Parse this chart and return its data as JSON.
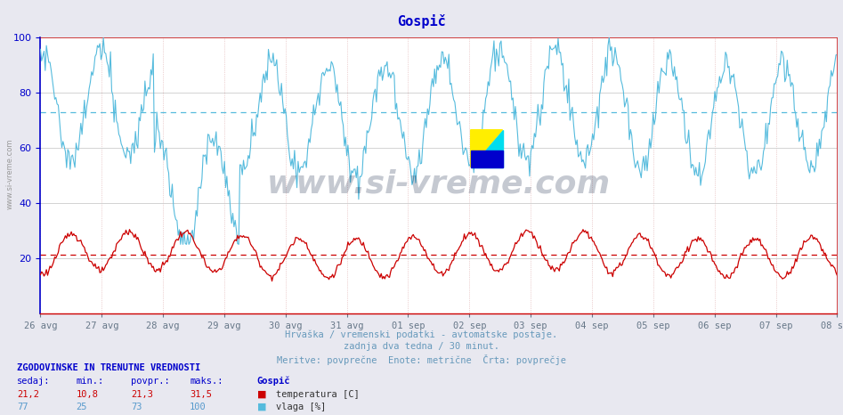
{
  "title": "Gospič",
  "title_color": "#0000cc",
  "bg_color": "#e8e8f0",
  "plot_bg_color": "#ffffff",
  "x_labels": [
    "26 avg",
    "27 avg",
    "28 avg",
    "29 avg",
    "30 avg",
    "31 avg",
    "01 sep",
    "02 sep",
    "03 sep",
    "04 sep",
    "05 sep",
    "06 sep",
    "07 sep",
    "08 sep"
  ],
  "ylim": [
    0,
    100
  ],
  "yticks": [
    20,
    40,
    60,
    80,
    100
  ],
  "subtitle1": "Hrvaška / vremenski podatki - avtomatske postaje.",
  "subtitle2": "zadnja dva tedna / 30 minut.",
  "subtitle3": "Meritve: povprečne  Enote: metrične  Črta: povprečje",
  "watermark": "www.si-vreme.com",
  "footer_title": "ZGODOVINSKE IN TRENUTNE VREDNOSTI",
  "footer_cols": [
    "sedaj:",
    "min.:",
    "povpr.:",
    "maks.:"
  ],
  "footer_station": "Gospič",
  "footer_temp": [
    "21,2",
    "10,8",
    "21,3",
    "31,5"
  ],
  "footer_hum": [
    "77",
    "25",
    "73",
    "100"
  ],
  "legend_temp": "temperatura [C]",
  "legend_hum": "vlaga [%]",
  "temp_color": "#cc0000",
  "hum_color": "#55bbdd",
  "avg_temp": 21.3,
  "avg_hum": 73,
  "grid_major_color": "#cccccc",
  "grid_minor_color": "#dddddd",
  "vgrid_color": "#ddaaaa",
  "axis_color": "#0000cc",
  "border_color": "#cc0000",
  "n_points": 672,
  "subtitle_color": "#6699bb",
  "footer_color": "#0000cc",
  "footer_temp_color": "#cc0000",
  "footer_hum_color": "#5599cc"
}
